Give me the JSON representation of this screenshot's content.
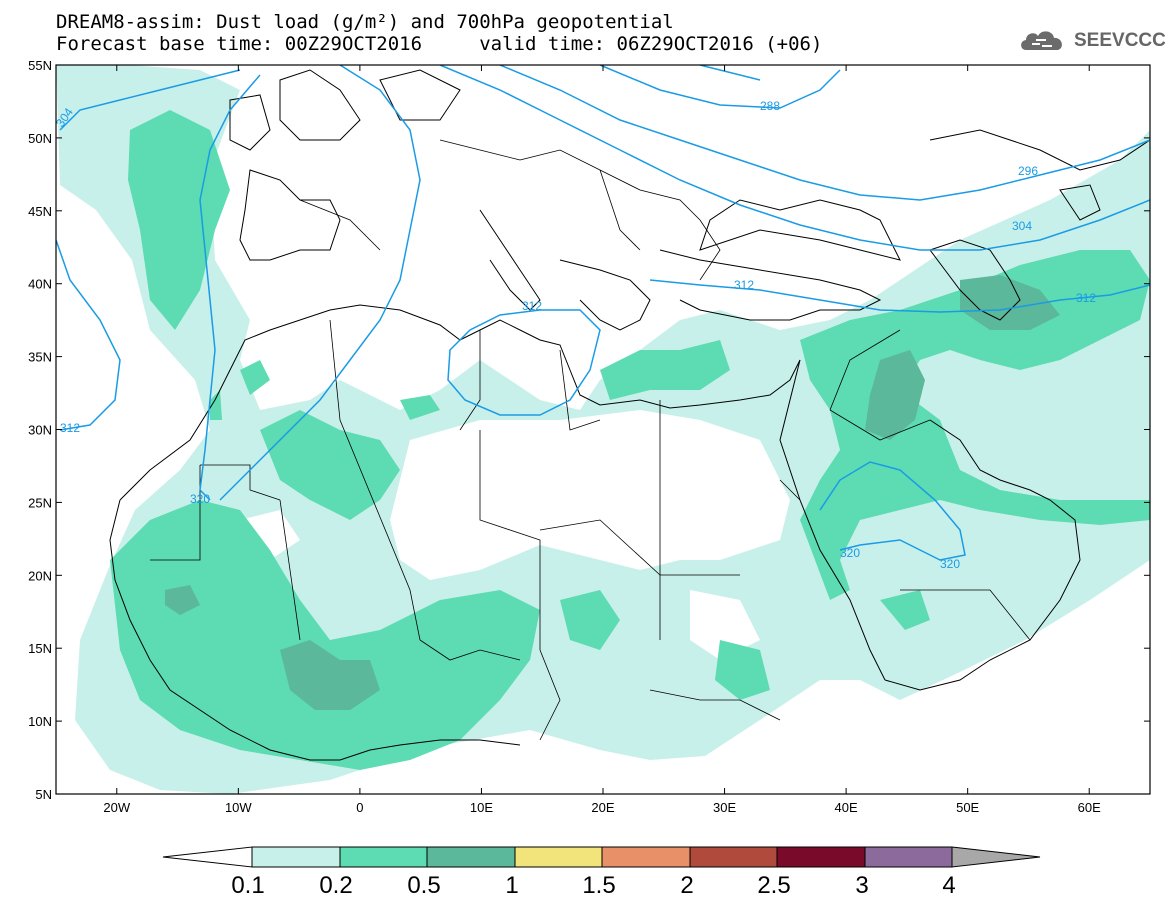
{
  "title": {
    "line1": "DREAM8-assim: Dust load (g/m²) and 700hPa geopotential",
    "line2": "Forecast base time: 00Z29OCT2016     valid time: 06Z29OCT2016 (+06)"
  },
  "logo": {
    "text": "SEEVCCC",
    "icon": "cloud-icon"
  },
  "map": {
    "lon_range": [
      -25,
      65
    ],
    "lat_range": [
      5,
      55
    ],
    "lon_ticks": [
      "20W",
      "10W",
      "0",
      "10E",
      "20E",
      "30E",
      "40E",
      "50E",
      "60E"
    ],
    "lat_ticks": [
      "55N",
      "50N",
      "45N",
      "40N",
      "35N",
      "30N",
      "25N",
      "20N",
      "15N",
      "10N",
      "5N"
    ],
    "contour_labels": [
      "304",
      "312",
      "288",
      "296",
      "304",
      "312",
      "312",
      "312",
      "320",
      "320",
      "320"
    ],
    "contour_color": "#1a9be6"
  },
  "colorbar": {
    "labels": [
      "0.1",
      "0.2",
      "0.5",
      "1",
      "1.5",
      "2",
      "2.5",
      "3",
      "4"
    ],
    "colors": [
      "#ffffff",
      "#c8f0ea",
      "#5ddbb2",
      "#5cb89a",
      "#f2e47a",
      "#e89068",
      "#b04a3c",
      "#7a0a2a",
      "#8c6a9c",
      "#a8a8a8"
    ]
  }
}
